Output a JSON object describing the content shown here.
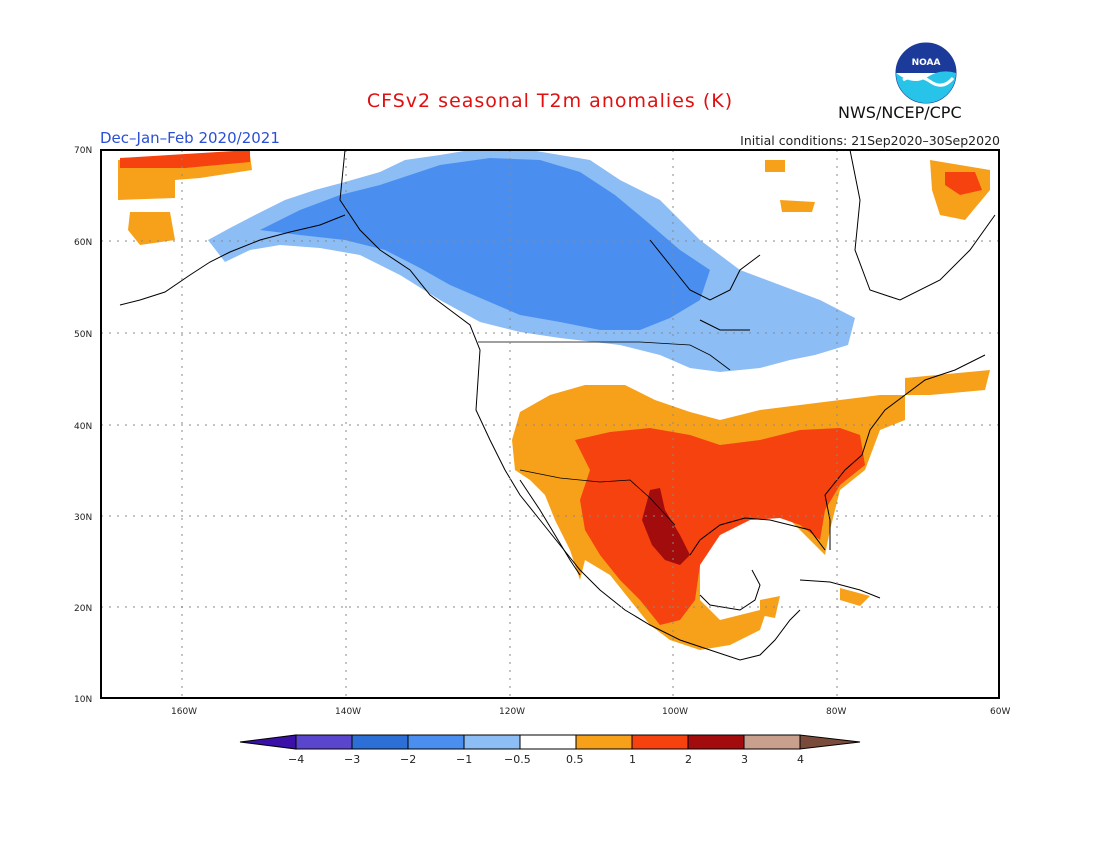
{
  "header": {
    "title": "CFSv2 seasonal T2m anomalies (K)",
    "season": "Dec–Jan–Feb 2020/2021",
    "initial_conditions": "Initial conditions: 21Sep2020–30Sep2020",
    "agency": "NWS/NCEP/CPC",
    "logo_text": "NOAA"
  },
  "map": {
    "lon_range": [
      -172,
      -60
    ],
    "lat_range": [
      10,
      70
    ],
    "lat_ticks": [
      "10N",
      "20N",
      "30N",
      "40N",
      "50N",
      "60N",
      "70N"
    ],
    "lon_ticks": [
      "160W",
      "140W",
      "120W",
      "100W",
      "80W",
      "60W"
    ],
    "grid": "dotted"
  },
  "colorbar": {
    "labels": [
      "−4",
      "−3",
      "−2",
      "−1",
      "−0.5",
      "0.5",
      "1",
      "2",
      "3",
      "4"
    ],
    "colors": [
      "#3a10a8",
      "#5a46cc",
      "#2c6fd6",
      "#4a8ff0",
      "#8cbdf5",
      "#ffffff",
      "#f7a11a",
      "#f5420e",
      "#a30c0c",
      "#c9a08e",
      "#7a4a3a"
    ]
  }
}
